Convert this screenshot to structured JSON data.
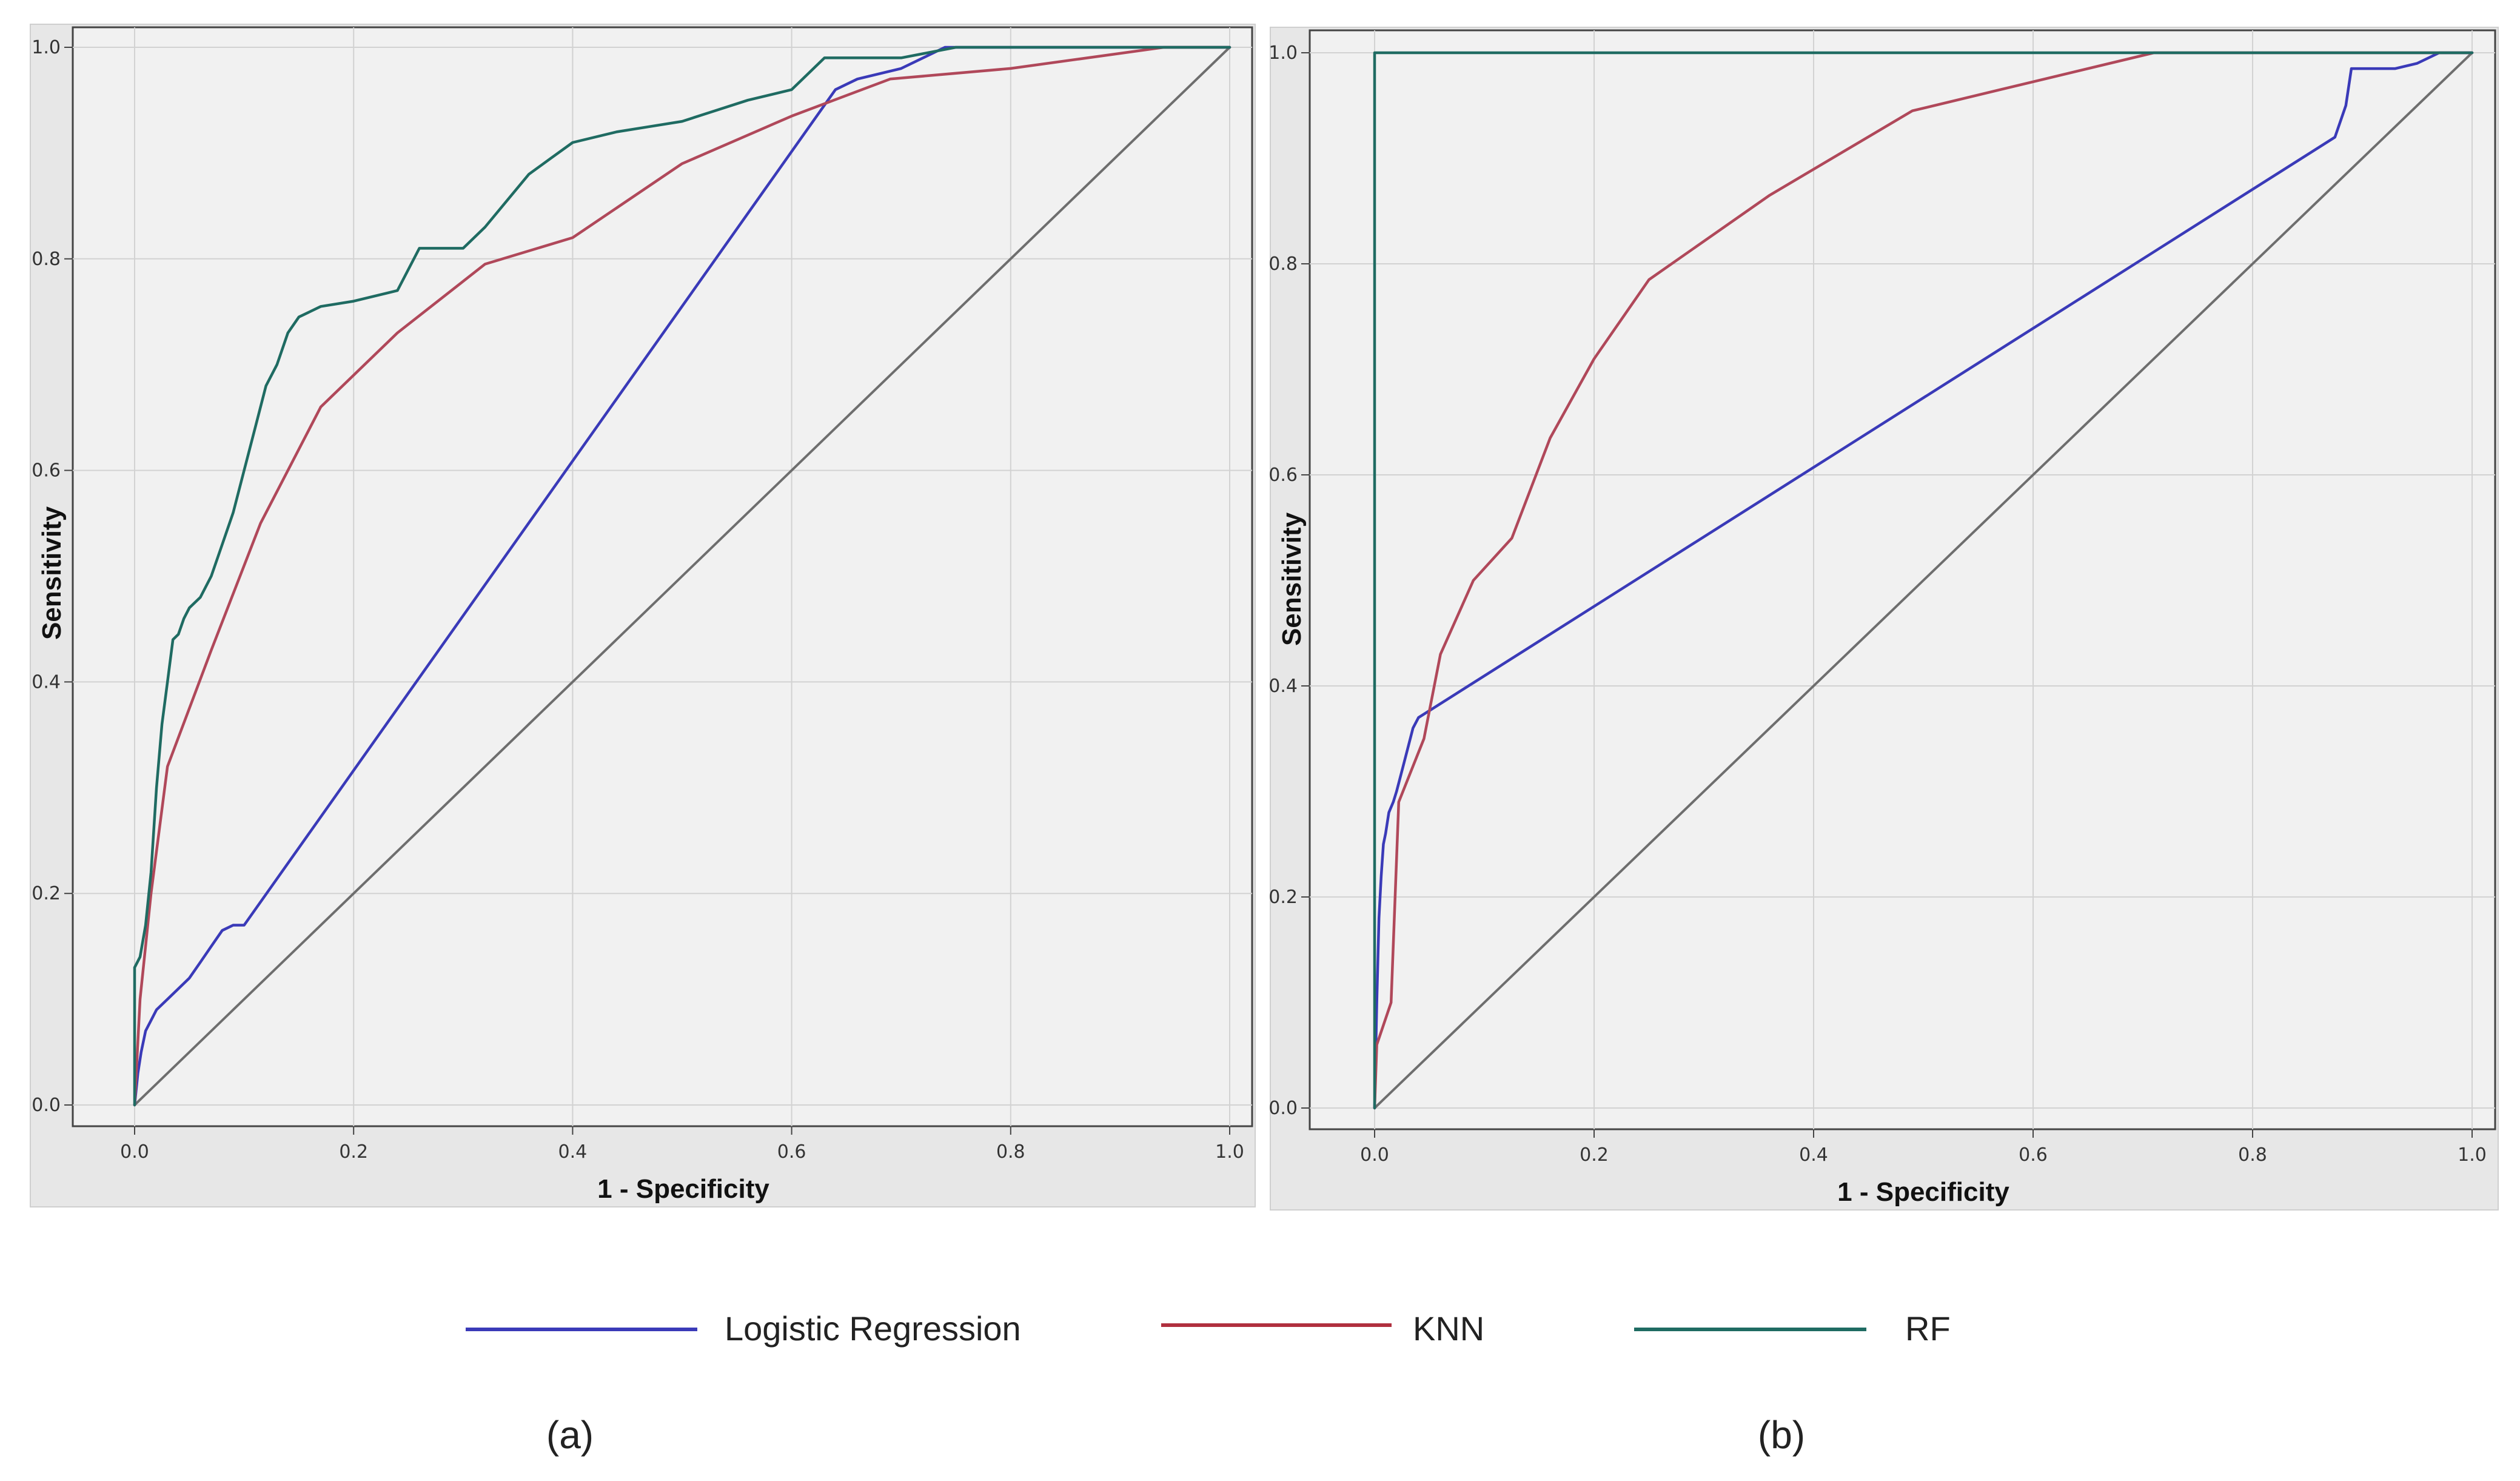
{
  "colors": {
    "logistic": "#3a3ab8",
    "knn": "#b0485a",
    "rf": "#1f6b62",
    "diagonal": "#6e6e6e",
    "legend_knn": "#b0303f",
    "legend_rf": "#1f6b62"
  },
  "legend": [
    {
      "name": "Logistic Regression",
      "color_key": "logistic"
    },
    {
      "name": "KNN",
      "color_key": "knn"
    },
    {
      "name": "RF",
      "color_key": "rf"
    }
  ],
  "chart_data": [
    {
      "type": "line",
      "panel_label": "(a)",
      "xlabel": "1 - Specificity",
      "ylabel": "Sensitivity",
      "xlim": [
        0,
        1
      ],
      "ylim": [
        0,
        1
      ],
      "xticks": [
        "0.0",
        "0.2",
        "0.4",
        "0.6",
        "0.8",
        "1.0"
      ],
      "yticks": [
        "0.0",
        "0.2",
        "0.4",
        "0.6",
        "0.8",
        "1.0"
      ],
      "grid": true,
      "series": [
        {
          "name": "Logistic Regression",
          "color_key": "logistic",
          "x": [
            0,
            0.003,
            0.006,
            0.01,
            0.015,
            0.02,
            0.03,
            0.04,
            0.05,
            0.06,
            0.07,
            0.08,
            0.09,
            0.1,
            0.64,
            0.66,
            0.7,
            0.74,
            0.8,
            1.0
          ],
          "y": [
            0,
            0.03,
            0.05,
            0.07,
            0.08,
            0.09,
            0.1,
            0.11,
            0.12,
            0.135,
            0.15,
            0.165,
            0.17,
            0.17,
            0.96,
            0.97,
            0.98,
            1.0,
            1.0,
            1.0
          ]
        },
        {
          "name": "KNN",
          "color_key": "knn",
          "x": [
            0,
            0.005,
            0.015,
            0.03,
            0.07,
            0.115,
            0.17,
            0.24,
            0.32,
            0.4,
            0.5,
            0.6,
            0.69,
            0.8,
            0.94,
            1.0
          ],
          "y": [
            0,
            0.1,
            0.2,
            0.32,
            0.43,
            0.55,
            0.66,
            0.73,
            0.795,
            0.82,
            0.89,
            0.935,
            0.97,
            0.98,
            1.0,
            1.0
          ]
        },
        {
          "name": "RF",
          "color_key": "rf",
          "x": [
            0,
            0,
            0.005,
            0.01,
            0.015,
            0.02,
            0.025,
            0.03,
            0.035,
            0.04,
            0.045,
            0.05,
            0.06,
            0.07,
            0.08,
            0.09,
            0.1,
            0.11,
            0.12,
            0.13,
            0.14,
            0.15,
            0.16,
            0.17,
            0.2,
            0.24,
            0.26,
            0.3,
            0.32,
            0.34,
            0.36,
            0.38,
            0.4,
            0.44,
            0.47,
            0.5,
            0.53,
            0.56,
            0.6,
            0.62,
            0.63,
            0.66,
            0.7,
            0.75,
            0.8,
            1.0
          ],
          "y": [
            0,
            0.13,
            0.14,
            0.17,
            0.22,
            0.3,
            0.36,
            0.4,
            0.44,
            0.445,
            0.46,
            0.47,
            0.48,
            0.5,
            0.53,
            0.56,
            0.6,
            0.64,
            0.68,
            0.7,
            0.73,
            0.745,
            0.75,
            0.755,
            0.76,
            0.77,
            0.81,
            0.81,
            0.83,
            0.855,
            0.88,
            0.895,
            0.91,
            0.92,
            0.925,
            0.93,
            0.94,
            0.95,
            0.96,
            0.98,
            0.99,
            0.99,
            0.99,
            1.0,
            1.0,
            1.0
          ]
        },
        {
          "name": "Reference",
          "color_key": "diagonal",
          "x": [
            0,
            1
          ],
          "y": [
            0,
            1
          ]
        }
      ]
    },
    {
      "type": "line",
      "panel_label": "(b)",
      "xlabel": "1 - Specificity",
      "ylabel": "Sensitivity",
      "xlim": [
        0,
        1
      ],
      "ylim": [
        0,
        1
      ],
      "xticks": [
        "0.0",
        "0.2",
        "0.4",
        "0.6",
        "0.8",
        "1.0"
      ],
      "yticks": [
        "0.0",
        "0.2",
        "0.4",
        "0.6",
        "0.8",
        "1.0"
      ],
      "grid": true,
      "series": [
        {
          "name": "Logistic Regression",
          "color_key": "logistic",
          "x": [
            0,
            0.002,
            0.004,
            0.006,
            0.008,
            0.01,
            0.013,
            0.017,
            0.02,
            0.025,
            0.03,
            0.035,
            0.04,
            0.875,
            0.885,
            0.89,
            0.93,
            0.95,
            0.97,
            1.0
          ],
          "y": [
            0,
            0.1,
            0.18,
            0.22,
            0.25,
            0.26,
            0.28,
            0.29,
            0.3,
            0.32,
            0.34,
            0.36,
            0.37,
            0.92,
            0.95,
            0.985,
            0.985,
            0.99,
            1.0,
            1.0
          ]
        },
        {
          "name": "KNN",
          "color_key": "knn",
          "x": [
            0,
            0.002,
            0.015,
            0.022,
            0.045,
            0.06,
            0.09,
            0.125,
            0.16,
            0.2,
            0.25,
            0.36,
            0.49,
            0.71,
            1.0
          ],
          "y": [
            0,
            0.06,
            0.1,
            0.29,
            0.35,
            0.43,
            0.5,
            0.54,
            0.635,
            0.71,
            0.785,
            0.865,
            0.945,
            1.0,
            1.0
          ]
        },
        {
          "name": "RF",
          "color_key": "rf",
          "x": [
            0,
            0,
            1
          ],
          "y": [
            0,
            1,
            1
          ]
        },
        {
          "name": "Reference",
          "color_key": "diagonal",
          "x": [
            0,
            1
          ],
          "y": [
            0,
            1
          ]
        }
      ]
    }
  ]
}
